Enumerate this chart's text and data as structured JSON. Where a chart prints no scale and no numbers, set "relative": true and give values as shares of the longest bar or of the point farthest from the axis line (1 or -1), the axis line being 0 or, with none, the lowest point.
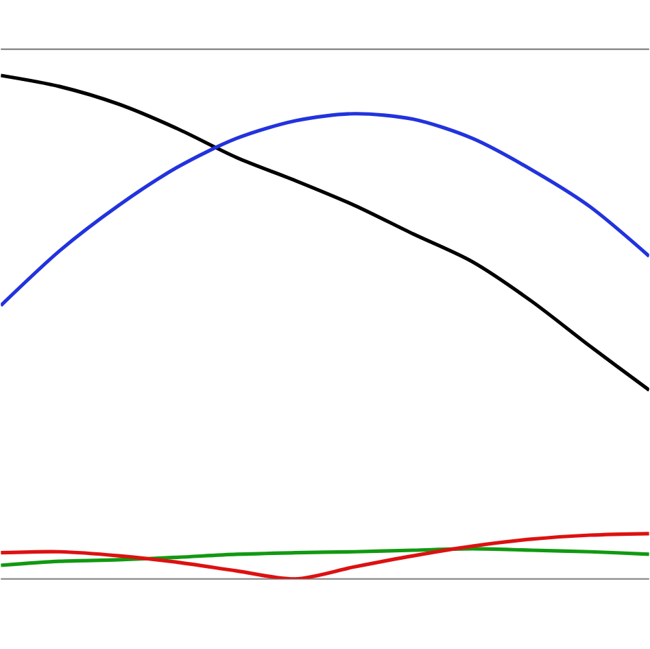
{
  "chart_data": {
    "type": "line",
    "relative": true,
    "categories": [
      null,
      null,
      null,
      null,
      null,
      null,
      null,
      null,
      null,
      null,
      null,
      null
    ],
    "series": [
      {
        "color": "#000000",
        "values": [
          1,
          0.978,
          0.943,
          0.894,
          0.837,
          0.791,
          0.742,
          0.685,
          0.63,
          0.552,
          0.462,
          0.375
        ]
      },
      {
        "color": "#2233dd",
        "values": [
          0.543,
          0.652,
          0.742,
          0.818,
          0.875,
          0.91,
          0.924,
          0.913,
          0.875,
          0.813,
          0.739,
          0.641
        ]
      },
      {
        "color": "#119911",
        "values": [
          0.027,
          0.035,
          0.038,
          0.043,
          0.049,
          0.052,
          0.054,
          0.057,
          0.06,
          0.057,
          0.054,
          0.049
        ]
      },
      {
        "color": "#dd1111",
        "values": [
          0.052,
          0.054,
          0.046,
          0.033,
          0.016,
          0,
          0.024,
          0.046,
          0.065,
          0.079,
          0.087,
          0.09
        ]
      }
    ]
  }
}
